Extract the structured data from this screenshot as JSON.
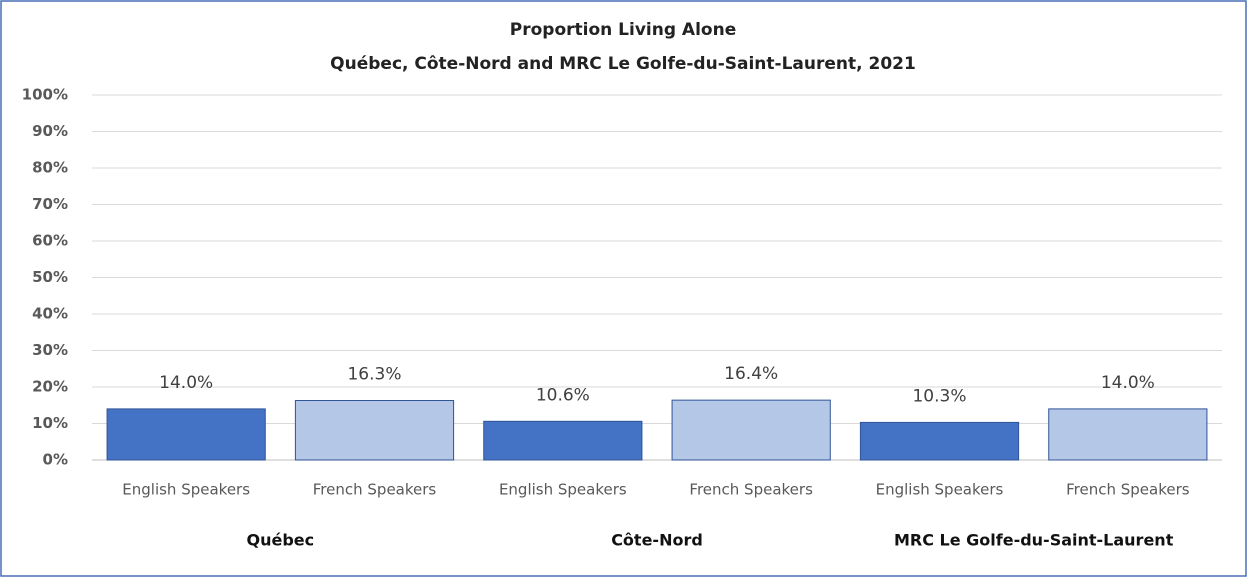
{
  "chart_data": {
    "type": "bar",
    "title": "Proportion Living Alone",
    "subtitle": "Québec, Côte-Nord and MRC Le Golfe-du-Saint-Laurent, 2021",
    "categories": [
      "English Speakers",
      "French Speakers",
      "English Speakers",
      "French Speakers",
      "English Speakers",
      "French Speakers"
    ],
    "groups": [
      "Québec",
      "Côte-Nord",
      "MRC Le Golfe-du-Saint-Laurent"
    ],
    "values": [
      14.0,
      16.3,
      10.6,
      16.4,
      10.3,
      14.0
    ],
    "value_labels": [
      "14.0%",
      "16.3%",
      "10.6%",
      "16.4%",
      "10.3%",
      "14.0%"
    ],
    "colors": [
      "#4472c4",
      "#b4c7e7",
      "#4472c4",
      "#b4c7e7",
      "#4472c4",
      "#b4c7e7"
    ],
    "ylim": [
      0,
      100
    ],
    "yticks": [
      {
        "value": 0,
        "label": "0%"
      },
      {
        "value": 10,
        "label": "10%"
      },
      {
        "value": 20,
        "label": "20%"
      },
      {
        "value": 30,
        "label": "30%"
      },
      {
        "value": 40,
        "label": "40%"
      },
      {
        "value": 50,
        "label": "50%"
      },
      {
        "value": 60,
        "label": "60%"
      },
      {
        "value": 70,
        "label": "70%"
      },
      {
        "value": 80,
        "label": "80%"
      },
      {
        "value": 90,
        "label": "90%"
      },
      {
        "value": 100,
        "label": "100%"
      }
    ],
    "grid": true
  }
}
